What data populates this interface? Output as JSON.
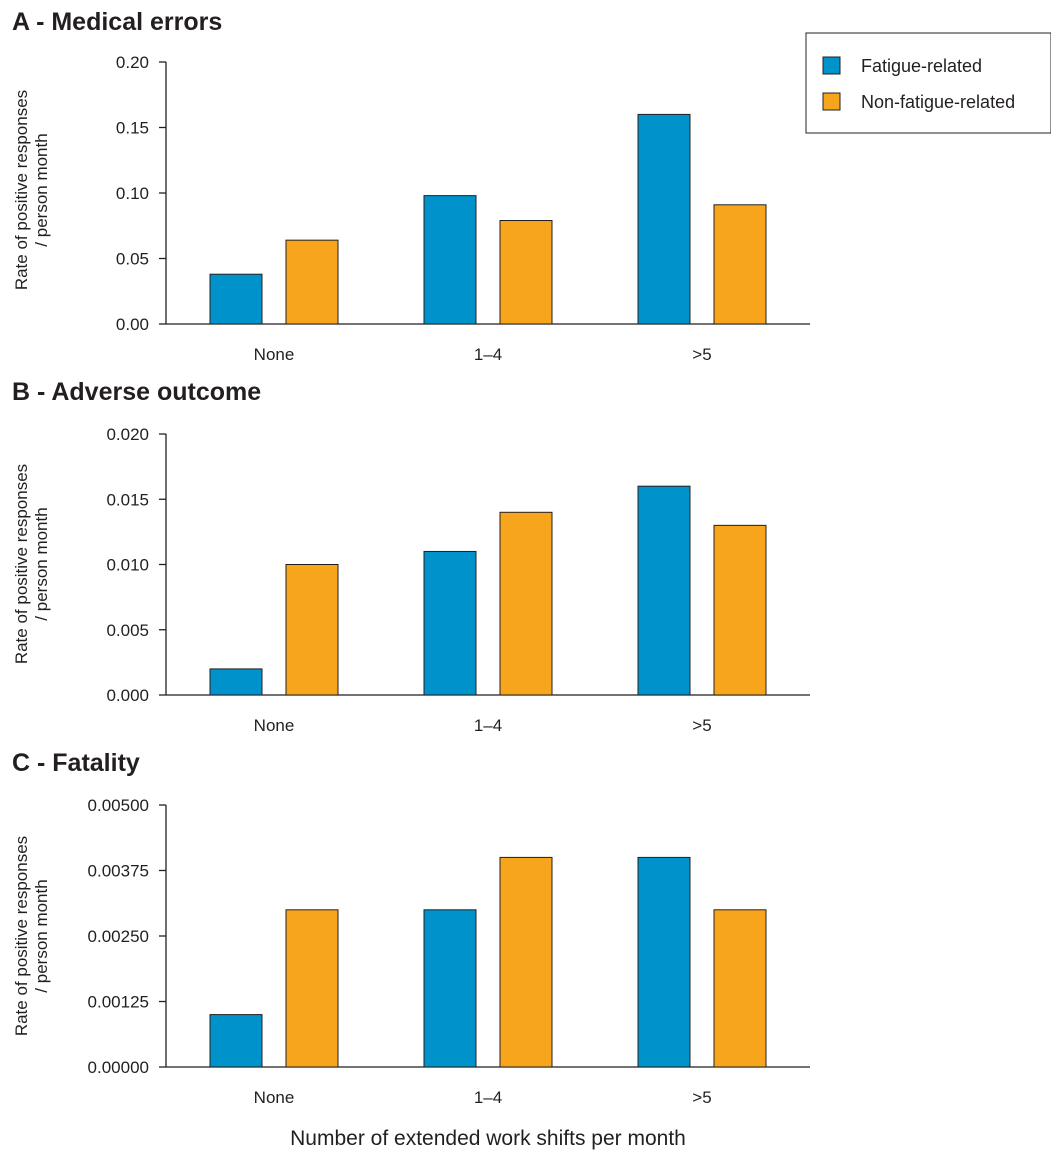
{
  "colors": {
    "fatigue": "#0093cb",
    "non_fatigue": "#f7a51d",
    "axis": "#231f20"
  },
  "legend": {
    "placement": "top-right",
    "items": [
      "Fatigue-related",
      "Non-fatigue-related"
    ]
  },
  "xlabel": "Number of extended work shifts per month",
  "chart_data": [
    {
      "type": "bar",
      "title": "A - Medical errors",
      "ylabel_lines": [
        "Rate of positive responses",
        "/ person month"
      ],
      "categories": [
        "None",
        "1–4",
        ">5"
      ],
      "ylim": [
        0,
        0.2
      ],
      "yticks": [
        "0.00",
        "0.05",
        "0.10",
        "0.15",
        "0.20"
      ],
      "series": [
        {
          "name": "Fatigue-related",
          "values": [
            0.038,
            0.098,
            0.16
          ]
        },
        {
          "name": "Non-fatigue-related",
          "values": [
            0.064,
            0.079,
            0.091
          ]
        }
      ]
    },
    {
      "type": "bar",
      "title": "B - Adverse outcome",
      "ylabel_lines": [
        "Rate of positive responses",
        "/ person month"
      ],
      "categories": [
        "None",
        "1–4",
        ">5"
      ],
      "ylim": [
        0,
        0.02
      ],
      "yticks": [
        "0.000",
        "0.005",
        "0.010",
        "0.015",
        "0.020"
      ],
      "series": [
        {
          "name": "Fatigue-related",
          "values": [
            0.002,
            0.011,
            0.016
          ]
        },
        {
          "name": "Non-fatigue-related",
          "values": [
            0.01,
            0.014,
            0.013
          ]
        }
      ]
    },
    {
      "type": "bar",
      "title": "C - Fatality",
      "ylabel_lines": [
        "Rate of positive responses",
        "/ person month"
      ],
      "categories": [
        "None",
        "1–4",
        ">5"
      ],
      "ylim": [
        0,
        0.005
      ],
      "yticks": [
        "0.00000",
        "0.00125",
        "0.00250",
        "0.00375",
        "0.00500"
      ],
      "series": [
        {
          "name": "Fatigue-related",
          "values": [
            0.001,
            0.003,
            0.004
          ]
        },
        {
          "name": "Non-fatigue-related",
          "values": [
            0.003,
            0.004,
            0.003
          ]
        }
      ]
    }
  ]
}
